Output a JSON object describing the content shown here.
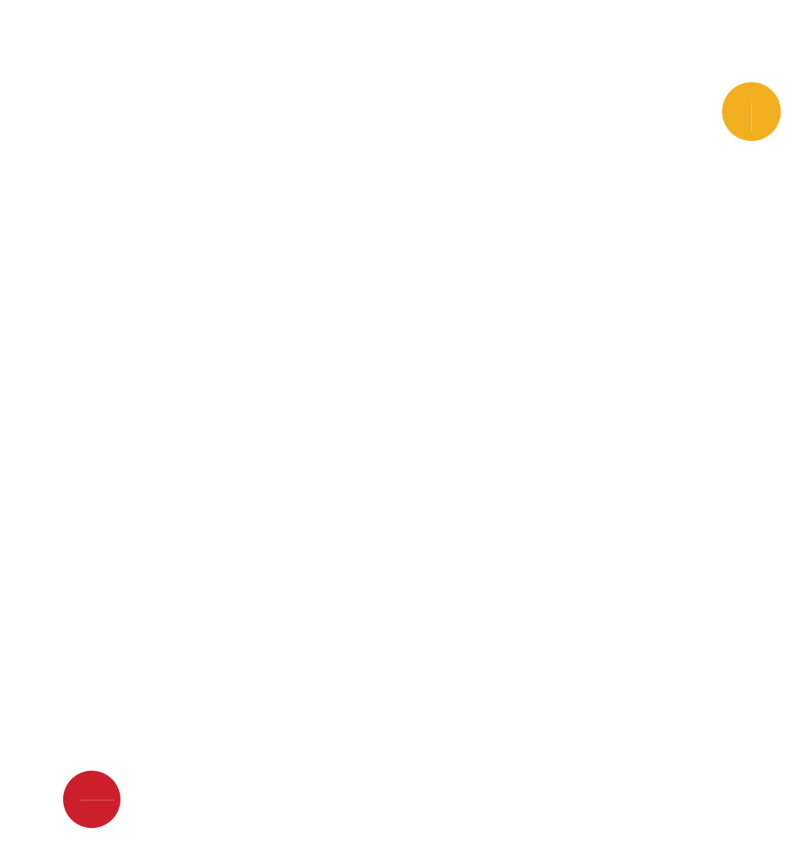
{
  "colors": {
    "background": "#ffffff",
    "yellow_dot": "#f2b020",
    "red_dot": "#cc1f2b"
  },
  "shapes": [
    {
      "name": "yellow-dot",
      "color": "yellow_dot"
    },
    {
      "name": "red-dot",
      "color": "red_dot"
    }
  ]
}
